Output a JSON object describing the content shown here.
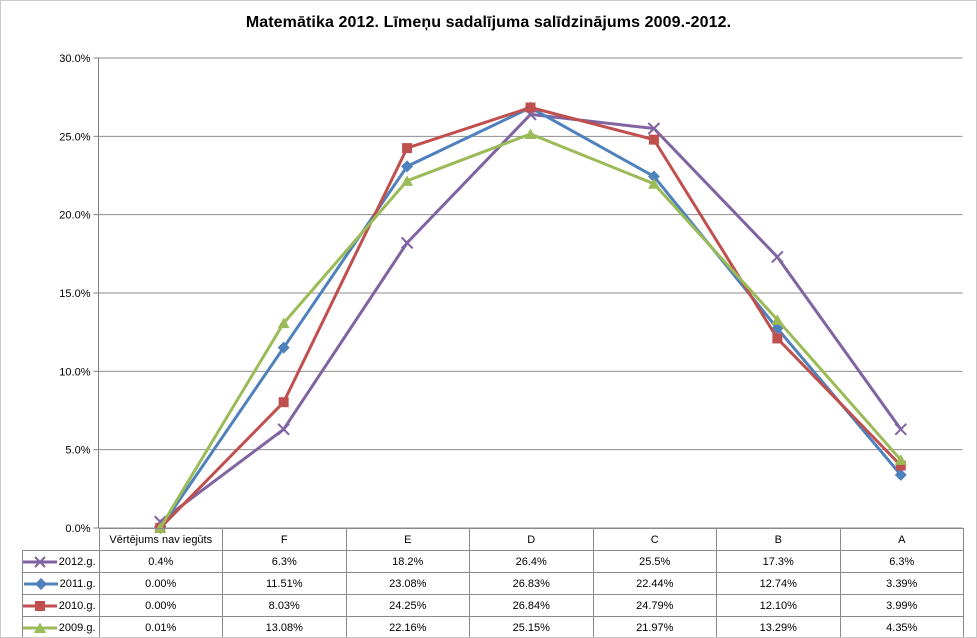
{
  "chart_data": {
    "type": "line",
    "title": "Matemātika 2012. Līmeņu sadalījuma salīdzinājums 2009.-2012.",
    "categories": [
      "Vērtējums nav iegūts",
      "F",
      "E",
      "D",
      "C",
      "B",
      "A"
    ],
    "series": [
      {
        "name": "2012.g.",
        "color": "#8064A2",
        "marker": "x",
        "values": [
          0.4,
          6.3,
          18.2,
          26.4,
          25.5,
          17.3,
          6.3
        ],
        "labels": [
          "0.4%",
          "6.3%",
          "18.2%",
          "26.4%",
          "25.5%",
          "17.3%",
          "6.3%"
        ]
      },
      {
        "name": "2011.g.",
        "color": "#4F81BD",
        "marker": "diamond",
        "values": [
          0.0,
          11.51,
          23.08,
          26.83,
          22.44,
          12.74,
          3.39
        ],
        "labels": [
          "0.00%",
          "11.51%",
          "23.08%",
          "26.83%",
          "22.44%",
          "12.74%",
          "3.39%"
        ]
      },
      {
        "name": "2010.g.",
        "color": "#C0504D",
        "marker": "square",
        "values": [
          0.0,
          8.03,
          24.25,
          26.84,
          24.79,
          12.1,
          3.99
        ],
        "labels": [
          "0.00%",
          "8.03%",
          "24.25%",
          "26.84%",
          "24.79%",
          "12.10%",
          "3.99%"
        ]
      },
      {
        "name": "2009.g.",
        "color": "#9BBB59",
        "marker": "triangle",
        "values": [
          0.01,
          13.08,
          22.16,
          25.15,
          21.97,
          13.29,
          4.35
        ],
        "labels": [
          "0.01%",
          "13.08%",
          "22.16%",
          "25.15%",
          "21.97%",
          "13.29%",
          "4.35%"
        ]
      }
    ],
    "y_axis": {
      "min": 0,
      "max": 30,
      "step": 5,
      "tick_labels": [
        "0.0%",
        "5.0%",
        "10.0%",
        "15.0%",
        "20.0%",
        "25.0%",
        "30.0%"
      ]
    },
    "grid": true,
    "legend_position": "data-table-left",
    "colors": {
      "gridline": "#8e8e8e",
      "axis": "#808080",
      "table_border": "#8a8a8a",
      "text": "#000000"
    }
  }
}
